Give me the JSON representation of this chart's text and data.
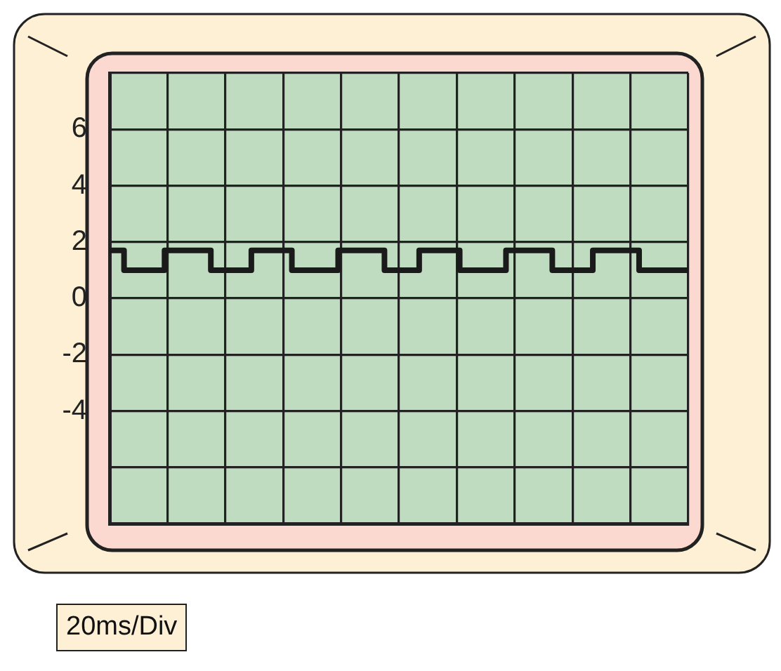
{
  "chart_data": {
    "type": "step",
    "categories": [
      null,
      null,
      null,
      null,
      null,
      null,
      null,
      null,
      null,
      null,
      null,
      null,
      null,
      null,
      null,
      null,
      null,
      null,
      null,
      null,
      null,
      null,
      null,
      null,
      null,
      null,
      null,
      null,
      null,
      null,
      null,
      null,
      null,
      null,
      null,
      null,
      null,
      null,
      null,
      null,
      null,
      null,
      null,
      null,
      null,
      null,
      null,
      null,
      null,
      null,
      null,
      null,
      null,
      null,
      null,
      null,
      null,
      null,
      null,
      null,
      null,
      null,
      null,
      null,
      null,
      null,
      null,
      null,
      null,
      null,
      null,
      null,
      null,
      null,
      null,
      null,
      null,
      null,
      null,
      null,
      null,
      null,
      null,
      null,
      null,
      null,
      null,
      null,
      null,
      null,
      null,
      null,
      null,
      null,
      null,
      null,
      null,
      null,
      null,
      null,
      null
    ],
    "series": [
      {
        "color": "#1a1a1a",
        "values": [
          1.7,
          1.7,
          1.7,
          1.0,
          1.0,
          1.0,
          1.0,
          1.0,
          1.0,
          1.0,
          1.7,
          1.7,
          1.7,
          1.7,
          1.7,
          1.7,
          1.7,
          1.7,
          1.0,
          1.0,
          1.0,
          1.0,
          1.0,
          1.0,
          1.0,
          1.7,
          1.7,
          1.7,
          1.7,
          1.7,
          1.7,
          1.7,
          1.0,
          1.0,
          1.0,
          1.0,
          1.0,
          1.0,
          1.0,
          1.0,
          1.7,
          1.7,
          1.7,
          1.7,
          1.7,
          1.7,
          1.7,
          1.7,
          1.0,
          1.0,
          1.0,
          1.0,
          1.0,
          1.0,
          1.7,
          1.7,
          1.7,
          1.7,
          1.7,
          1.7,
          1.7,
          1.0,
          1.0,
          1.0,
          1.0,
          1.0,
          1.0,
          1.0,
          1.0,
          1.7,
          1.7,
          1.7,
          1.7,
          1.7,
          1.7,
          1.7,
          1.7,
          1.0,
          1.0,
          1.0,
          1.0,
          1.0,
          1.0,
          1.0,
          1.7,
          1.7,
          1.7,
          1.7,
          1.7,
          1.7,
          1.7,
          1.7,
          1.0,
          1.0,
          1.0,
          1.0,
          1.0,
          1.0,
          1.0,
          1.0,
          1.0
        ]
      }
    ],
    "ylim": [
      -8,
      8
    ],
    "yticks": [
      {
        "value": -8,
        "label": null
      },
      {
        "value": -6,
        "label": null
      },
      -4,
      -2,
      0,
      2,
      4,
      6,
      {
        "value": 8,
        "label": null
      }
    ],
    "tick_labels": "y",
    "grid": true,
    "legend": false,
    "marker": "none",
    "line_style": "solid",
    "annotations": [
      "20ms/Div"
    ]
  }
}
